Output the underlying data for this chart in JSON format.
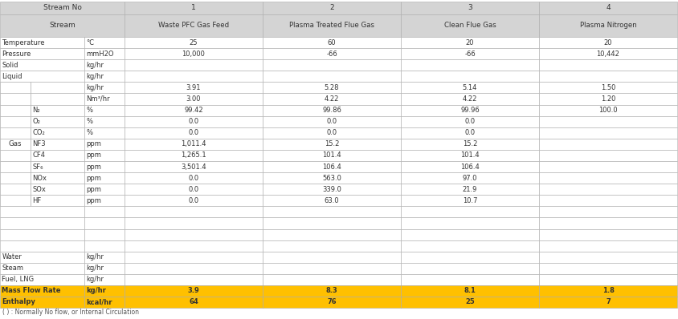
{
  "header_bg": "#d4d4d4",
  "subheader_bg": "#d4d4d4",
  "yellow_bg": "#FFC000",
  "white_bg": "#ffffff",
  "border_color": "#aaaaaa",
  "stream_numbers": [
    "1",
    "2",
    "3",
    "4"
  ],
  "stream_names": [
    "Waste PFC Gas Feed",
    "Plasma Treated Flue Gas",
    "Clean Flue Gas",
    "Plasma Nitrogen"
  ],
  "rows": [
    {
      "label": "Temperature",
      "unit": "°C",
      "vals": [
        "25",
        "60",
        "20",
        "20"
      ],
      "type": "normal"
    },
    {
      "label": "Pressure",
      "unit": "mmH2O",
      "vals": [
        "10,000",
        "-66",
        "-66",
        "10,442"
      ],
      "type": "normal"
    },
    {
      "label": "Solid",
      "unit": "kg/hr",
      "vals": [
        "",
        "",
        "",
        ""
      ],
      "type": "normal"
    },
    {
      "label": "Liquid",
      "unit": "kg/hr",
      "vals": [
        "",
        "",
        "",
        ""
      ],
      "type": "normal"
    },
    {
      "label": "",
      "unit": "kg/hr",
      "vals": [
        "3.91",
        "5.28",
        "5.14",
        "1.50"
      ],
      "type": "gas_flow"
    },
    {
      "label": "",
      "unit": "Nm³/hr",
      "vals": [
        "3.00",
        "4.22",
        "4.22",
        "1.20"
      ],
      "type": "gas_flow"
    },
    {
      "label": "N₂",
      "unit": "%",
      "vals": [
        "99.42",
        "99.86",
        "99.96",
        "100.0"
      ],
      "type": "gas_comp"
    },
    {
      "label": "O₂",
      "unit": "%",
      "vals": [
        "0.0",
        "0.0",
        "0.0",
        ""
      ],
      "type": "gas_comp"
    },
    {
      "label": "CO₂",
      "unit": "%",
      "vals": [
        "0.0",
        "0.0",
        "0.0",
        ""
      ],
      "type": "gas_comp"
    },
    {
      "label": "NF3",
      "unit": "ppm",
      "vals": [
        "1,011.4",
        "15.2",
        "15.2",
        ""
      ],
      "type": "gas_comp"
    },
    {
      "label": "CF4",
      "unit": "ppm",
      "vals": [
        "1,265.1",
        "101.4",
        "101.4",
        ""
      ],
      "type": "gas_comp"
    },
    {
      "label": "SF₆",
      "unit": "ppm",
      "vals": [
        "3,501.4",
        "106.4",
        "106.4",
        ""
      ],
      "type": "gas_comp"
    },
    {
      "label": "NOx",
      "unit": "ppm",
      "vals": [
        "0.0",
        "563.0",
        "97.0",
        ""
      ],
      "type": "gas_comp"
    },
    {
      "label": "SOx",
      "unit": "ppm",
      "vals": [
        "0.0",
        "339.0",
        "21.9",
        ""
      ],
      "type": "gas_comp"
    },
    {
      "label": "HF",
      "unit": "ppm",
      "vals": [
        "0.0",
        "63.0",
        "10.7",
        ""
      ],
      "type": "gas_comp"
    },
    {
      "label": "",
      "unit": "",
      "vals": [
        "",
        "",
        "",
        ""
      ],
      "type": "empty"
    },
    {
      "label": "",
      "unit": "",
      "vals": [
        "",
        "",
        "",
        ""
      ],
      "type": "empty"
    },
    {
      "label": "",
      "unit": "",
      "vals": [
        "",
        "",
        "",
        ""
      ],
      "type": "empty"
    },
    {
      "label": "",
      "unit": "",
      "vals": [
        "",
        "",
        "",
        ""
      ],
      "type": "empty"
    },
    {
      "label": "Water",
      "unit": "kg/hr",
      "vals": [
        "",
        "",
        "",
        ""
      ],
      "type": "normal"
    },
    {
      "label": "Steam",
      "unit": "kg/hr",
      "vals": [
        "",
        "",
        "",
        ""
      ],
      "type": "normal"
    },
    {
      "label": "Fuel, LNG",
      "unit": "kg/hr",
      "vals": [
        "",
        "",
        "",
        ""
      ],
      "type": "normal"
    },
    {
      "label": "Mass Flow Rate",
      "unit": "kg/hr",
      "vals": [
        "3.9",
        "8.3",
        "8.1",
        "1.8"
      ],
      "type": "yellow"
    },
    {
      "label": "Enthalpy",
      "unit": "kcal/hr",
      "vals": [
        "64",
        "76",
        "25",
        "7"
      ],
      "type": "yellow"
    }
  ],
  "footnote": "( ) : Normally No flow, or Internal Circulation"
}
